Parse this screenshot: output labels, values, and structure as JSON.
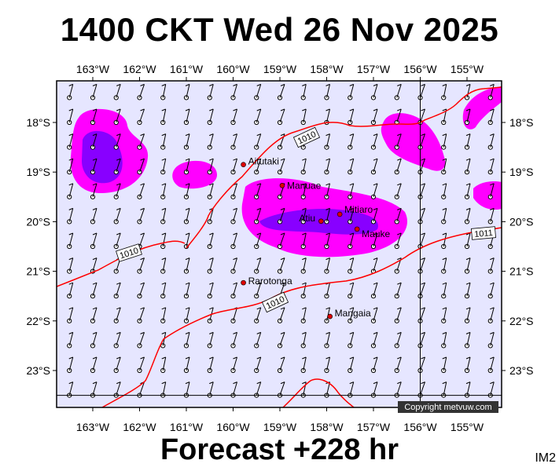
{
  "title": "1400 CKT Wed 26 Nov 2025",
  "forecast": "Forecast +228 hr",
  "code": "IM2",
  "copyright": "Copyright metvuw.com",
  "lon_ticks": [
    "163°W",
    "162°W",
    "161°W",
    "160°W",
    "159°W",
    "158°W",
    "157°W",
    "156°W",
    "155°W"
  ],
  "lat_ticks": [
    "18°S",
    "19°S",
    "20°S",
    "21°S",
    "22°S",
    "23°S"
  ],
  "isobar_labels": [
    "1010",
    "1010",
    "1010",
    "1011"
  ],
  "places": [
    {
      "name": "Aitutaki",
      "lon": -159.78,
      "lat": -18.85
    },
    {
      "name": "Manuae",
      "lon": -158.95,
      "lat": -19.27
    },
    {
      "name": "Atiu",
      "lon": -158.12,
      "lat": -19.99
    },
    {
      "name": "Mitiaro",
      "lon": -157.72,
      "lat": -19.85
    },
    {
      "name": "Mauke",
      "lon": -157.35,
      "lat": -20.15
    },
    {
      "name": "Rarotonga",
      "lon": -159.78,
      "lat": -21.23
    },
    {
      "name": "Mangaia",
      "lon": -157.93,
      "lat": -21.91
    }
  ],
  "colors": {
    "background": "#e6e6ff",
    "rain_light": "#ff00ff",
    "rain_heavy": "#8800ff",
    "isobar": "#ff0000",
    "grid": "#000000"
  }
}
